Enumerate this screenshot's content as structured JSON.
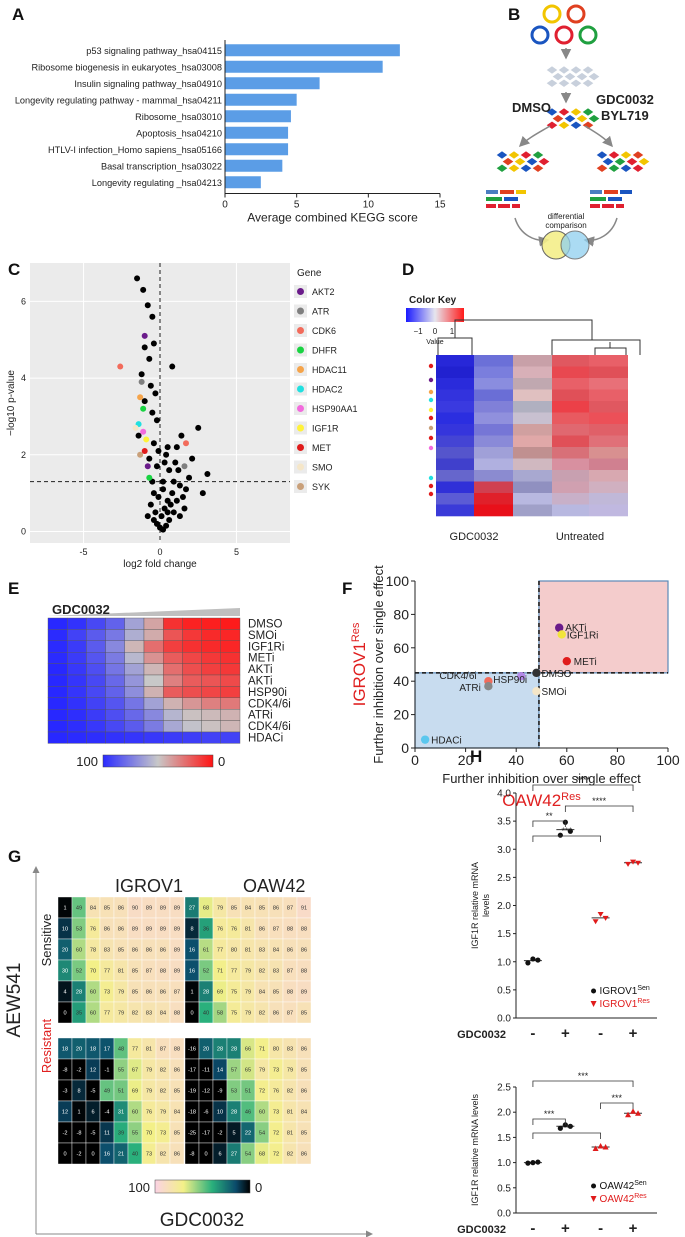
{
  "panel_labels": [
    "A",
    "B",
    "C",
    "D",
    "E",
    "F",
    "G",
    "H"
  ],
  "chart_data": [
    {
      "panel": "A",
      "type": "bar",
      "orientation": "horizontal",
      "categories": [
        "p53 signaling pathway_hsa04115",
        "Ribosome biogenesis in eukaryotes_hsa03008",
        "Insulin signaling pathway_hsa04910",
        "Longevity regulating pathway - mammal_hsa04211",
        "Ribosome_hsa03010",
        "Apoptosis_hsa04210",
        "HTLV-I infection_Homo sapiens_hsa05166",
        "Basal transcription_hsa03022",
        "Longevity regulating _hsa04213"
      ],
      "values": [
        12.2,
        11.0,
        6.6,
        5.0,
        4.6,
        4.4,
        4.4,
        4.0,
        2.5
      ],
      "xlabel": "Average combined KEGG score",
      "xticks": [
        "0",
        "5",
        "10",
        "15"
      ],
      "xlim": [
        0,
        15
      ],
      "color": "#5b9de6"
    },
    {
      "panel": "C",
      "type": "scatter",
      "xlabel": "log2 fold change",
      "ylabel": "−log10 p-value",
      "xlim": [
        -8.5,
        8.5
      ],
      "ylim": [
        -0.3,
        7
      ],
      "xticks": [
        "-5",
        "0",
        "5"
      ],
      "yticks": [
        "0",
        "2",
        "4",
        "6"
      ],
      "threshold_y": 1.3,
      "legend_title": "Gene",
      "legend": [
        {
          "name": "AKT2",
          "color": "#6a1b8a"
        },
        {
          "name": "ATR",
          "color": "#7f7f7f"
        },
        {
          "name": "CDK6",
          "color": "#f26b5b"
        },
        {
          "name": "DHFR",
          "color": "#19d342"
        },
        {
          "name": "HDAC11",
          "color": "#f5a44a"
        },
        {
          "name": "HDAC2",
          "color": "#21e0e0"
        },
        {
          "name": "HSP90AA1",
          "color": "#f26bdd"
        },
        {
          "name": "IGF1R",
          "color": "#fff23a"
        },
        {
          "name": "MET",
          "color": "#e01b1b"
        },
        {
          "name": "SMO",
          "color": "#f5e6c8"
        },
        {
          "name": "SYK",
          "color": "#c9a07a"
        }
      ],
      "highlighted": [
        [
          -1.0,
          5.1
        ],
        [
          -1.2,
          3.9
        ],
        [
          -2.6,
          4.3
        ],
        [
          -1.1,
          3.2
        ],
        [
          -1.3,
          3.5
        ],
        [
          -1.4,
          2.8
        ],
        [
          -1.1,
          2.6
        ],
        [
          -0.9,
          2.4
        ],
        [
          -1.0,
          2.1
        ],
        [
          -1.6,
          2.7
        ],
        [
          -1.3,
          2.0
        ],
        [
          -0.8,
          1.7
        ],
        [
          1.6,
          1.7
        ],
        [
          1.7,
          2.3
        ],
        [
          -0.7,
          1.4
        ]
      ],
      "points": [
        [
          -1.5,
          6.6
        ],
        [
          -1.1,
          6.3
        ],
        [
          -0.8,
          5.9
        ],
        [
          -0.5,
          5.6
        ],
        [
          -0.4,
          4.9
        ],
        [
          -1.0,
          4.8
        ],
        [
          -0.7,
          4.5
        ],
        [
          0.8,
          4.3
        ],
        [
          -1.2,
          4.1
        ],
        [
          -0.6,
          3.8
        ],
        [
          -0.3,
          3.6
        ],
        [
          -1.0,
          3.4
        ],
        [
          -0.5,
          3.1
        ],
        [
          -0.2,
          2.9
        ],
        [
          2.5,
          2.7
        ],
        [
          1.4,
          2.5
        ],
        [
          -1.4,
          2.5
        ],
        [
          -0.4,
          2.3
        ],
        [
          1.1,
          2.2
        ],
        [
          0.5,
          2.2
        ],
        [
          -0.1,
          2.1
        ],
        [
          2.1,
          1.9
        ],
        [
          3.1,
          1.5
        ],
        [
          1.0,
          1.8
        ],
        [
          0.3,
          1.8
        ],
        [
          -0.7,
          1.9
        ],
        [
          1.9,
          1.4
        ],
        [
          0.6,
          1.6
        ],
        [
          -0.2,
          1.7
        ],
        [
          -0.5,
          1.3
        ],
        [
          1.3,
          1.2
        ],
        [
          0.2,
          1.1
        ],
        [
          0.8,
          1.0
        ],
        [
          -0.4,
          1.0
        ],
        [
          1.1,
          0.8
        ],
        [
          0.5,
          0.8
        ],
        [
          -0.1,
          0.9
        ],
        [
          1.6,
          0.6
        ],
        [
          0.3,
          0.6
        ],
        [
          0.9,
          0.5
        ],
        [
          -0.3,
          0.5
        ],
        [
          0.1,
          0.4
        ],
        [
          0.6,
          0.3
        ],
        [
          -0.2,
          0.2
        ],
        [
          0.0,
          0.1
        ],
        [
          0.4,
          0.15
        ],
        [
          0.2,
          0.05
        ],
        [
          -0.4,
          0.3
        ],
        [
          1.3,
          0.4
        ],
        [
          0.7,
          0.7
        ],
        [
          0.2,
          1.3
        ],
        [
          -0.6,
          0.7
        ],
        [
          0.9,
          1.3
        ],
        [
          1.2,
          1.6
        ],
        [
          0.4,
          2.0
        ],
        [
          2.8,
          1.0
        ],
        [
          1.7,
          1.1
        ],
        [
          -0.8,
          0.4
        ],
        [
          0.5,
          0.5
        ],
        [
          1.5,
          0.9
        ]
      ]
    },
    {
      "panel": "F",
      "type": "scatter",
      "xlabel": "Further inhibition over single effect",
      "ylabel": "Further inhibition over single effect",
      "xtitle_base": "OAW42",
      "xtitle_sup": "Res",
      "ytitle_base": "IGROV1",
      "ytitle_sup": "Res",
      "xlim": [
        0,
        100
      ],
      "ylim": [
        0,
        100
      ],
      "xticks": [
        "0",
        "20",
        "40",
        "60",
        "80",
        "100"
      ],
      "yticks": [
        "0",
        "20",
        "40",
        "60",
        "80",
        "100"
      ],
      "threshold_x": 49,
      "threshold_y": 45,
      "points": [
        {
          "label": "AKTi",
          "x": 57,
          "y": 72,
          "color": "#6a1b8a"
        },
        {
          "label": "IGF1Ri",
          "x": 58,
          "y": 68,
          "color": "#f2e43a"
        },
        {
          "label": "METi",
          "x": 60,
          "y": 52,
          "color": "#e01b1b"
        },
        {
          "label": "DMSO",
          "x": 48,
          "y": 45,
          "color": "#333333"
        },
        {
          "label": "SMOi",
          "x": 48,
          "y": 34,
          "color": "#f5e6c8"
        },
        {
          "label": "CDK4/6i",
          "x": 29,
          "y": 40,
          "color": "#f26b5b"
        },
        {
          "label": "HSP90i",
          "x": 42,
          "y": 43,
          "color": "#b489e8"
        },
        {
          "label": "ATRi",
          "x": 29,
          "y": 37,
          "color": "#888888"
        },
        {
          "label": "HDACi",
          "x": 4,
          "y": 5,
          "color": "#5bc7ee"
        }
      ]
    },
    {
      "panel": "H-top",
      "type": "scatter",
      "ylabel": "IGF1R relative mRNA\nlevels",
      "ylim": [
        0,
        4
      ],
      "yticks": [
        "0.0",
        "0.5",
        "1.0",
        "1.5",
        "2.0",
        "2.5",
        "3.0",
        "3.5",
        "4.0"
      ],
      "x_row_label": "GDC0032",
      "x_signs": [
        "-",
        "+",
        "-",
        "+"
      ],
      "groups": [
        {
          "mean": 1.02,
          "points": [
            0.98,
            1.05,
            1.03
          ],
          "color": "#111111"
        },
        {
          "mean": 3.35,
          "points": [
            3.25,
            3.48,
            3.32
          ],
          "color": "#111111"
        },
        {
          "mean": 1.78,
          "points": [
            1.72,
            1.85,
            1.78
          ],
          "color": "#e01b1b"
        },
        {
          "mean": 2.76,
          "points": [
            2.74,
            2.78,
            2.76
          ],
          "color": "#e01b1b"
        }
      ],
      "significance": [
        "****",
        "**",
        "****",
        "***"
      ],
      "legend": [
        {
          "base": "IGROV1",
          "sup": "Sen",
          "color": "#111111"
        },
        {
          "base": "IGROV1",
          "sup": "Res",
          "color": "#e01b1b"
        }
      ]
    },
    {
      "panel": "H-bottom",
      "type": "scatter",
      "ylabel": "IGF1R relative mRNA levels",
      "ylim": [
        0,
        2.5
      ],
      "yticks": [
        "0.0",
        "0.5",
        "1.0",
        "1.5",
        "2.0",
        "2.5"
      ],
      "x_row_label": "GDC0032",
      "x_signs": [
        "-",
        "+",
        "-",
        "+"
      ],
      "groups": [
        {
          "mean": 1.0,
          "points": [
            0.99,
            1.0,
            1.01
          ],
          "color": "#111111"
        },
        {
          "mean": 1.72,
          "points": [
            1.68,
            1.75,
            1.72
          ],
          "color": "#111111"
        },
        {
          "mean": 1.31,
          "points": [
            1.28,
            1.33,
            1.31
          ],
          "color": "#e01b1b"
        },
        {
          "mean": 1.98,
          "points": [
            1.95,
            2.02,
            1.98
          ],
          "color": "#e01b1b"
        }
      ],
      "significance": [
        "***",
        "***",
        "***",
        "***"
      ],
      "legend": [
        {
          "base": "OAW42",
          "sup": "Sen",
          "color": "#111111"
        },
        {
          "base": "OAW42",
          "sup": "Res",
          "color": "#e01b1b"
        }
      ]
    }
  ],
  "panelB": {
    "dmso": "DMSO",
    "drug1": "GDC0032",
    "drug2": "BYL719",
    "comparison": "differential\ncomparison"
  },
  "panelD": {
    "title": "Color Key",
    "value_label": "Value",
    "ticks": [
      "−1",
      "0",
      "1"
    ],
    "groups": [
      "GDC0032",
      "Untreated"
    ],
    "columns": [
      [
        "#2727d8",
        "#2121d0",
        "#2a2bdb",
        "#3333dd",
        "#3a3ae0",
        "#2b2ee0",
        "#3535dc",
        "#4444d4",
        "#5555cc",
        "#4040cc",
        "#6666cc",
        "#3030d8",
        "#5b5bd5",
        "#3a3ad8"
      ],
      [
        "#6b70d8",
        "#7a7edd",
        "#8a8ddf",
        "#6a6ed6",
        "#8080d8",
        "#9090dd",
        "#7676d6",
        "#8a8ad8",
        "#a0a0d8",
        "#b0b0e0",
        "#8b8bd0",
        "#d04050",
        "#e0202a",
        "#e8101a"
      ],
      [
        "#c8a0a8",
        "#d8b0b8",
        "#c0a8b0",
        "#e0c0c0",
        "#b0b0c0",
        "#c8c0d0",
        "#d0a0a0",
        "#e0a8a8",
        "#c09090",
        "#d0b8c0",
        "#a8a8d0",
        "#9090c0",
        "#b8b8e0",
        "#a0a0c8"
      ],
      [
        "#e05860",
        "#e84850",
        "#e86068",
        "#e05058",
        "#ec4048",
        "#e85a60",
        "#e06870",
        "#e05058",
        "#d87078",
        "#d890a0",
        "#c8a0b0",
        "#d0a0b0",
        "#c8b0c8",
        "#b8b8e0"
      ],
      [
        "#e86068",
        "#e05058",
        "#e87078",
        "#e86068",
        "#e05860",
        "#ec5058",
        "#e06068",
        "#e07078",
        "#d89090",
        "#d08090",
        "#d8a8b0",
        "#d0b0c0",
        "#c0b8d8",
        "#c0b8e0"
      ]
    ]
  },
  "panelE": {
    "title": "GDC0032",
    "rows": [
      "DMSO",
      "SMOi",
      "IGF1Ri",
      "METi",
      "AKTi",
      "AKTi",
      "HSP90i",
      "CDK4/6i",
      "ATRi",
      "CDK4/6i",
      "HDACi"
    ],
    "scale_left": "100",
    "scale_right": "0",
    "values": [
      [
        100,
        97,
        90,
        82,
        62,
        40,
        8,
        4,
        3,
        2
      ],
      [
        99,
        92,
        84,
        75,
        58,
        42,
        18,
        10,
        6,
        5
      ],
      [
        99,
        94,
        84,
        70,
        45,
        25,
        12,
        8,
        6,
        5
      ],
      [
        99,
        94,
        86,
        74,
        55,
        35,
        20,
        14,
        10,
        8
      ],
      [
        100,
        95,
        88,
        76,
        62,
        45,
        25,
        16,
        12,
        10
      ],
      [
        100,
        96,
        90,
        80,
        66,
        50,
        30,
        20,
        18,
        15
      ],
      [
        100,
        96,
        90,
        82,
        68,
        44,
        20,
        16,
        14,
        12
      ],
      [
        100,
        97,
        92,
        86,
        76,
        62,
        44,
        36,
        30,
        28
      ],
      [
        100,
        98,
        94,
        88,
        80,
        70,
        56,
        48,
        46,
        44
      ],
      [
        100,
        98,
        95,
        90,
        84,
        74,
        60,
        52,
        48,
        45
      ],
      [
        100,
        99,
        98,
        97,
        96,
        95,
        94,
        93,
        92,
        92
      ]
    ]
  },
  "panelG": {
    "cell1": "IGROV1",
    "cell2": "OAW42",
    "row1": "Sensitive",
    "row2": "Resistant",
    "yaxis": "AEW541",
    "xaxis": "GDC0032",
    "scale_left": "100",
    "scale_right": "0",
    "grids": [
      [
        [
          1,
          49,
          84,
          85,
          86,
          90,
          89,
          89,
          89
        ],
        [
          10,
          53,
          76,
          86,
          86,
          89,
          89,
          89,
          89
        ],
        [
          20,
          60,
          78,
          83,
          85,
          86,
          86,
          86,
          89
        ],
        [
          30,
          52,
          70,
          77,
          81,
          85,
          87,
          88,
          89
        ],
        [
          4,
          28,
          60,
          73,
          79,
          85,
          86,
          86,
          87
        ],
        [
          0,
          35,
          60,
          77,
          79,
          82,
          83,
          84,
          88
        ]
      ],
      [
        [
          27,
          68,
          79,
          85,
          84,
          85,
          86,
          87,
          91
        ],
        [
          8,
          36,
          76,
          76,
          81,
          86,
          87,
          88,
          88
        ],
        [
          16,
          61,
          77,
          80,
          81,
          83,
          84,
          86,
          86
        ],
        [
          16,
          52,
          71,
          77,
          79,
          82,
          83,
          87,
          88
        ],
        [
          1,
          28,
          69,
          75,
          79,
          84,
          85,
          88,
          89
        ],
        [
          0,
          40,
          58,
          75,
          79,
          82,
          86,
          87,
          85
        ]
      ],
      [
        [
          18,
          20,
          18,
          17,
          48,
          77,
          81,
          87,
          88
        ],
        [
          -8,
          -2,
          12,
          -1,
          55,
          67,
          79,
          82,
          86
        ],
        [
          -3,
          8,
          -5,
          49,
          51,
          69,
          79,
          82,
          85
        ],
        [
          12,
          1,
          6,
          -4,
          31,
          60,
          76,
          79,
          84
        ],
        [
          -2,
          -8,
          -5,
          11,
          39,
          55,
          70,
          73,
          85
        ],
        [
          0,
          -2,
          0,
          16,
          21,
          40,
          73,
          82,
          86
        ]
      ],
      [
        [
          -16,
          20,
          28,
          28,
          66,
          71,
          80,
          83,
          86
        ],
        [
          -17,
          -11,
          14,
          57,
          65,
          79,
          73,
          79,
          85
        ],
        [
          -19,
          -12,
          -9,
          53,
          51,
          72,
          76,
          82,
          86
        ],
        [
          -18,
          -6,
          10,
          28,
          46,
          60,
          73,
          81,
          84
        ],
        [
          -25,
          -17,
          -2,
          5,
          22,
          54,
          72,
          81,
          85
        ],
        [
          -8,
          0,
          6,
          27,
          54,
          68,
          72,
          82,
          86
        ]
      ]
    ]
  }
}
